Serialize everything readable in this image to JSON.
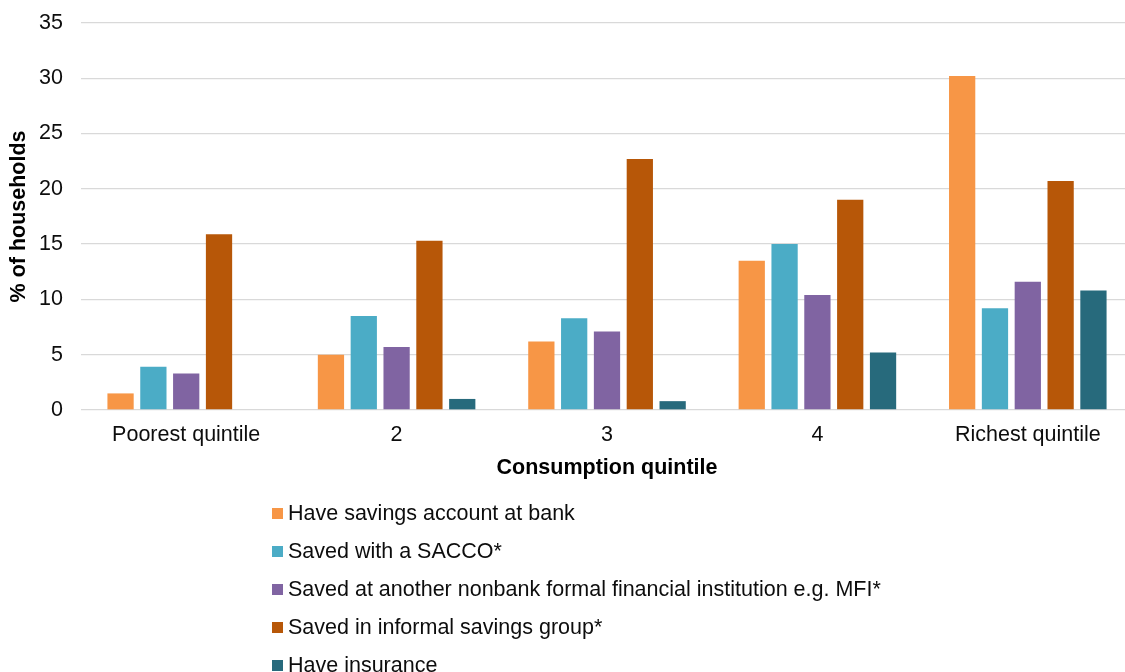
{
  "chart_data": {
    "type": "bar",
    "xlabel": "Consumption quintile",
    "ylabel": "% of households",
    "categories": [
      "Poorest quintile",
      "2",
      "3",
      "4",
      "Richest quintile"
    ],
    "series": [
      {
        "name": "Have savings account at bank",
        "color": "#f79646",
        "values": [
          1.5,
          5.0,
          6.2,
          13.5,
          30.2
        ]
      },
      {
        "name": "Saved with a SACCO*",
        "color": "#4bacc6",
        "values": [
          3.9,
          8.5,
          8.3,
          15.0,
          9.2
        ]
      },
      {
        "name": "Saved at another nonbank formal financial institution e.g. MFI*",
        "color": "#8064a2",
        "values": [
          3.3,
          5.7,
          7.1,
          10.4,
          11.6
        ]
      },
      {
        "name": "Saved in informal savings group*",
        "color": "#b75708",
        "values": [
          15.9,
          15.3,
          22.7,
          19.0,
          20.7
        ]
      },
      {
        "name": "Have insurance",
        "color": "#276a7c",
        "values": [
          null,
          1.0,
          0.8,
          5.2,
          10.8
        ]
      }
    ],
    "ylim": [
      0,
      35
    ],
    "yticks": [
      0,
      5,
      10,
      15,
      20,
      25,
      30,
      35
    ],
    "grid": "y",
    "legend": "bottom"
  }
}
